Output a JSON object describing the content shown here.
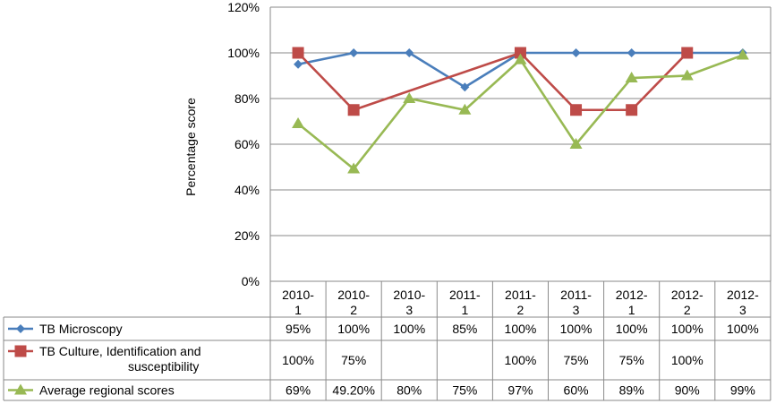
{
  "chart_data": {
    "type": "line",
    "ylabel": "Percentage score",
    "ylim": [
      0,
      120
    ],
    "yticks": [
      "0%",
      "20%",
      "40%",
      "60%",
      "80%",
      "100%",
      "120%"
    ],
    "categories": [
      [
        "2010-",
        "1"
      ],
      [
        "2010-",
        "2"
      ],
      [
        "2010-",
        "3"
      ],
      [
        "2011-",
        "1"
      ],
      [
        "2011-",
        "2"
      ],
      [
        "2011-",
        "3"
      ],
      [
        "2012-",
        "1"
      ],
      [
        "2012-",
        "2"
      ],
      [
        "2012-",
        "3"
      ]
    ],
    "grid": true,
    "legend": "data-table",
    "series": [
      {
        "name_lines": [
          "TB Microscopy"
        ],
        "color": "#4A7EBB",
        "marker": "diamond",
        "values": [
          95,
          100,
          100,
          85,
          100,
          100,
          100,
          100,
          100
        ],
        "labels": [
          "95%",
          "100%",
          "100%",
          "85%",
          "100%",
          "100%",
          "100%",
          "100%",
          "100%"
        ]
      },
      {
        "name_lines": [
          "TB Culture, Identification and",
          "susceptibility"
        ],
        "color": "#BE4B48",
        "marker": "square",
        "values": [
          100,
          75,
          null,
          null,
          100,
          75,
          75,
          100,
          null
        ],
        "labels": [
          "100%",
          "75%",
          "",
          "",
          "100%",
          "75%",
          "75%",
          "100%",
          ""
        ]
      },
      {
        "name_lines": [
          "Average regional scores"
        ],
        "color": "#98B954",
        "marker": "triangle",
        "values": [
          69,
          49.2,
          80,
          75,
          97,
          60,
          89,
          90,
          99
        ],
        "labels": [
          "69%",
          "49.20%",
          "80%",
          "75%",
          "97%",
          "60%",
          "89%",
          "90%",
          "99%"
        ]
      }
    ]
  }
}
